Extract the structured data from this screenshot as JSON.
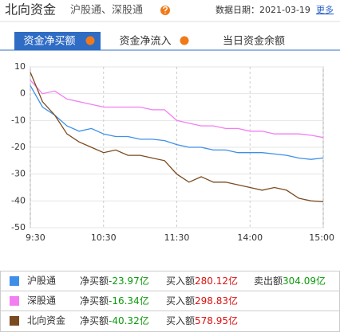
{
  "header": {
    "title": "北向资金",
    "subtitle": "沪股通、深股通",
    "date_label": "数据日期：",
    "date": "2021-03-19",
    "more": "更多"
  },
  "tabs": [
    "资金净买额",
    "资金净流入",
    "当日资金余额"
  ],
  "chart_data": {
    "type": "line",
    "x": [
      0,
      10,
      20,
      30,
      40,
      50,
      60,
      70,
      80,
      90,
      100,
      110,
      120,
      130,
      140,
      150,
      160,
      170,
      180,
      190,
      200,
      210,
      220,
      230,
      240
    ],
    "xlim": [
      0,
      240
    ],
    "xticks": [
      {
        "value": 0,
        "label": "9:30"
      },
      {
        "value": 60,
        "label": "10:30"
      },
      {
        "value": 120,
        "label": "11:30"
      },
      {
        "value": 180,
        "label": "14:00"
      },
      {
        "value": 240,
        "label": "15:00"
      }
    ],
    "ylim": [
      -50,
      10
    ],
    "yticks": [
      10,
      0,
      -10,
      -20,
      -30,
      -40,
      -50
    ],
    "grid": true,
    "series": [
      {
        "name": "沪股通",
        "color": "#3d8fe8",
        "values": [
          3,
          -5,
          -8,
          -12,
          -14,
          -13,
          -15,
          -16,
          -16,
          -17,
          -17,
          -17.5,
          -19,
          -20,
          -20,
          -21,
          -21,
          -22,
          -22,
          -22,
          -22.5,
          -23,
          -24,
          -24.5,
          -23.97
        ]
      },
      {
        "name": "深股通",
        "color": "#f27ef2",
        "values": [
          5,
          0,
          1,
          -2,
          -3,
          -4,
          -5,
          -5,
          -5,
          -5,
          -6,
          -6,
          -10,
          -11,
          -12,
          -12,
          -13,
          -13,
          -14,
          -14,
          -15,
          -15,
          -15,
          -15.5,
          -16.34
        ]
      },
      {
        "name": "北向资金",
        "color": "#7a4b1f",
        "values": [
          8,
          -3,
          -8,
          -15,
          -18,
          -20,
          -22,
          -21,
          -23,
          -23,
          -24,
          -25,
          -30,
          -33,
          -31,
          -33,
          -33,
          -34,
          -35,
          -36,
          -35,
          -36,
          -39,
          -40,
          -40.32
        ]
      }
    ]
  },
  "table": {
    "rows": [
      [
        "净买额",
        "-23.97亿",
        "买入额",
        "280.12亿",
        "卖出额",
        "304.09亿"
      ],
      [
        "净买额",
        "-16.34亿",
        "买入额",
        "298.83亿"
      ],
      [
        "净买额",
        "-40.32亿",
        "买入额",
        "578.95亿"
      ]
    ]
  }
}
